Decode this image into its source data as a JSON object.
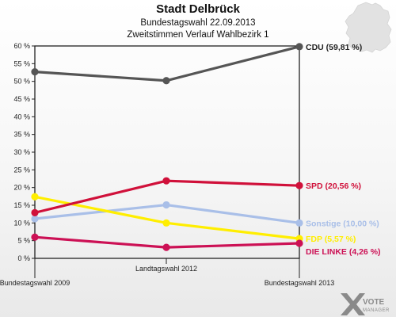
{
  "chart_data": {
    "type": "line",
    "title": "Stadt Delbrück",
    "subtitle_1": "Bundestagswahl 22.09.2013",
    "subtitle_2": "Zweitstimmen Verlauf Wahlbezirk 1",
    "x": [
      "Bundestagswahl 2009",
      "Landtagswahl 2012",
      "Bundestagswahl 2013"
    ],
    "ylim": [
      0,
      60
    ],
    "yticks": [
      "0 %",
      "5 %",
      "10 %",
      "15 %",
      "20 %",
      "25 %",
      "30 %",
      "35 %",
      "40 %",
      "45 %",
      "50 %",
      "55 %",
      "60 %"
    ],
    "grid": false,
    "series": [
      {
        "name": "CDU",
        "values": [
          52.7,
          50.2,
          59.81
        ],
        "color": "#555555",
        "label": "CDU (59,81 %)"
      },
      {
        "name": "SPD",
        "values": [
          12.9,
          21.9,
          20.56
        ],
        "color": "#d0103a",
        "label": "SPD (20,56 %)"
      },
      {
        "name": "Sonstige",
        "values": [
          11.2,
          15.1,
          10.0
        ],
        "color": "#a9bfe8",
        "label": "Sonstige (10,00 %)"
      },
      {
        "name": "FDP",
        "values": [
          17.4,
          10.0,
          5.57
        ],
        "color": "#ffee00",
        "label": "FDP (5,57 %)"
      },
      {
        "name": "DIE LINKE",
        "values": [
          6.0,
          3.1,
          4.26
        ],
        "color": "#cc1155",
        "label": "DIE LINKE (4,26 %)"
      }
    ]
  },
  "watermark": {
    "brand": "VOTE",
    "sub": "MANAGER",
    "icon": "ballot-x-icon"
  }
}
